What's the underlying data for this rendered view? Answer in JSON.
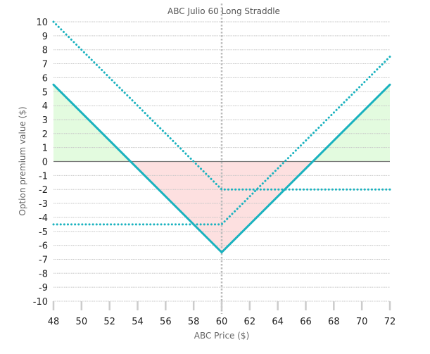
{
  "chart_data": {
    "type": "line",
    "title": "ABC Julio 60 Long Straddle",
    "xlabel": "ABC Price ($)",
    "ylabel": "Option premium value ($)",
    "xlim": [
      48,
      72
    ],
    "ylim": [
      -10,
      10
    ],
    "xticks": [
      48,
      50,
      52,
      54,
      56,
      58,
      60,
      62,
      64,
      66,
      68,
      70,
      72
    ],
    "yticks": [
      10,
      9,
      8,
      7,
      6,
      5,
      4,
      3,
      2,
      1,
      0,
      -1,
      -2,
      -3,
      -4,
      -5,
      -6,
      -7,
      -8,
      -9,
      -10
    ],
    "grid": true,
    "strike_marker": 60,
    "series": [
      {
        "style": "solid",
        "x": [
          48,
          60,
          72
        ],
        "y": [
          5.5,
          -6.5,
          5.5
        ]
      },
      {
        "style": "dotted",
        "x": [
          48,
          60,
          72
        ],
        "y": [
          10,
          -2,
          -2
        ]
      },
      {
        "style": "dotted",
        "x": [
          48,
          60,
          72
        ],
        "y": [
          -4.5,
          -4.5,
          7.5
        ]
      }
    ],
    "shading": {
      "profit_color": "#e3fbdf",
      "loss_color": "#fde0e0"
    },
    "colors": {
      "line": "#1ab2bf",
      "grid": "#c8c8c8",
      "zero_line": "#777777"
    }
  }
}
